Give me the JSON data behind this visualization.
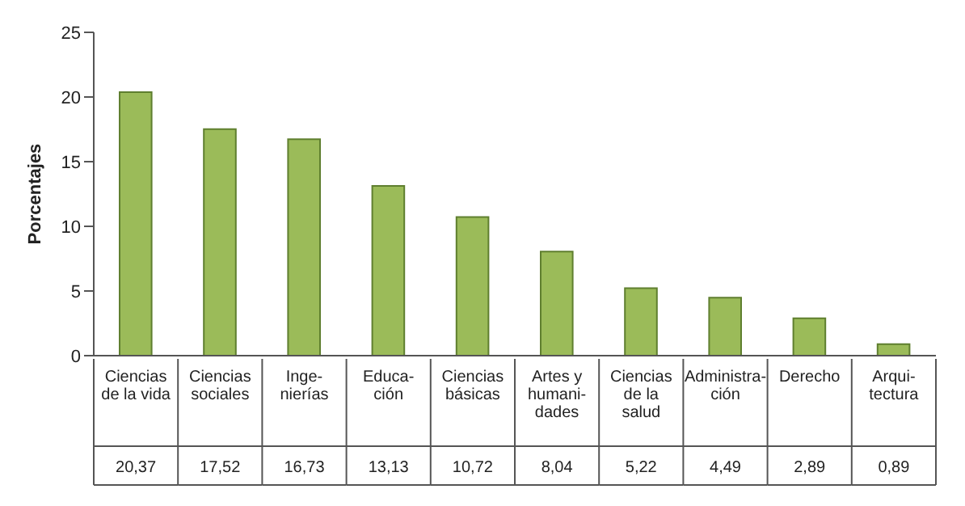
{
  "chart_data": {
    "type": "bar",
    "ylabel": "Porcentajes",
    "categories": [
      "Ciencias\nde la vida",
      "Ciencias\nsociales",
      "Inge-\nnierías",
      "Educa-\nción",
      "Ciencias\nbásicas",
      "Artes y\nhumani-\ndades",
      "Ciencias\nde la\nsalud",
      "Administra-\nción",
      "Derecho",
      "Arqui-\ntectura"
    ],
    "values": [
      20.37,
      17.52,
      16.73,
      13.13,
      10.72,
      8.04,
      5.22,
      4.49,
      2.89,
      0.89
    ],
    "value_labels": [
      "20,37",
      "17,52",
      "16,73",
      "13,13",
      "10,72",
      "8,04",
      "5,22",
      "4,49",
      "2,89",
      "0,89"
    ],
    "color": "#9bbb59",
    "ylim": [
      0,
      25
    ],
    "yticks": [
      0,
      5,
      10,
      15,
      20,
      25
    ]
  }
}
